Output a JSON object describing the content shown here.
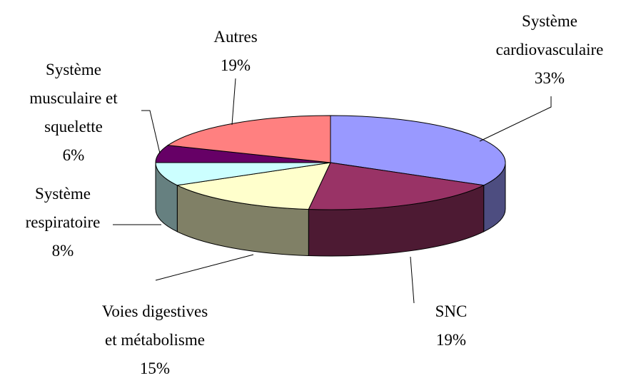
{
  "chart_data": {
    "type": "pie3d",
    "categories": [
      "Système\ncardiovasculaire",
      "SNC",
      "Voies digestives\net métabolisme",
      "Système\nrespiratoire",
      "Système\nmusculaire et\nsquelette",
      "Autres"
    ],
    "values": [
      33,
      19,
      15,
      8,
      6,
      19
    ],
    "value_labels": [
      "33%",
      "19%",
      "15%",
      "8%",
      "6%",
      "19%"
    ],
    "colors": [
      "#9999ff",
      "#993366",
      "#ffffcc",
      "#ccffff",
      "#660066",
      "#ff8080"
    ]
  }
}
